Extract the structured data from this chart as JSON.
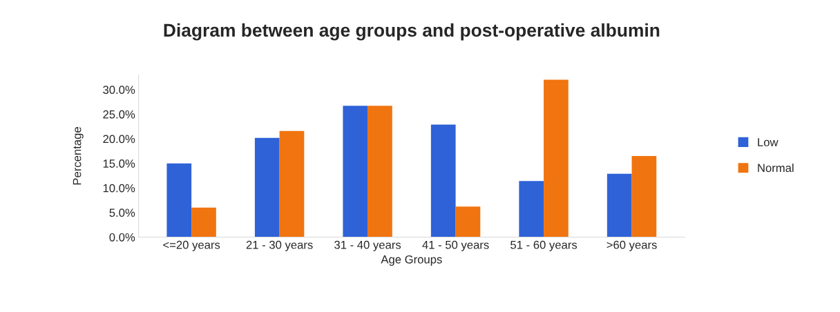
{
  "chart_data": {
    "type": "bar",
    "title": "Diagram between age groups and post-operative albumin",
    "xlabel": "Age Groups",
    "ylabel": "Percentage",
    "categories": [
      "<=20 years",
      "21 - 30 years",
      "31 - 40 years",
      "41 - 50 years",
      "51 - 60 years",
      ">60 years"
    ],
    "series": [
      {
        "name": "Low",
        "color": "#2e62d6",
        "values": [
          15.0,
          20.2,
          26.7,
          22.9,
          11.4,
          12.9
        ]
      },
      {
        "name": "Normal",
        "color": "#f07410",
        "values": [
          6.0,
          21.6,
          26.7,
          6.2,
          32.0,
          16.5
        ]
      }
    ],
    "ylim": [
      0,
      33
    ],
    "yticks": [
      {
        "value": 0,
        "label": "0.0%"
      },
      {
        "value": 5,
        "label": "5.0%"
      },
      {
        "value": 10,
        "label": "10.0%"
      },
      {
        "value": 15,
        "label": "15.0%"
      },
      {
        "value": 20,
        "label": "20.0%"
      },
      {
        "value": 25,
        "label": "25.0%"
      },
      {
        "value": 30,
        "label": "30.0%"
      }
    ],
    "grid": false,
    "legend": "right"
  }
}
